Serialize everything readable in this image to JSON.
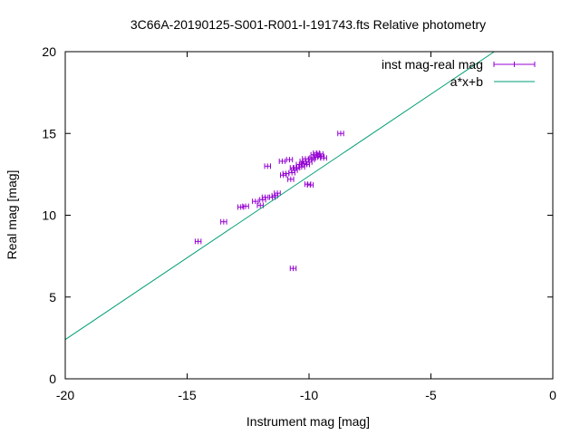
{
  "chart_data": {
    "type": "scatter",
    "title": "3C66A-20190125-S001-R001-I-191743.fts Relative photometry",
    "xlabel": "Instrument mag [mag]",
    "ylabel": "Real mag [mag]",
    "xlim": [
      -20,
      0
    ],
    "ylim": [
      0,
      20
    ],
    "x_ticks": [
      {
        "value": -20,
        "label": "-20"
      },
      {
        "value": -15,
        "label": "-15"
      },
      {
        "value": -10,
        "label": "-10"
      },
      {
        "value": -5,
        "label": "-5"
      },
      {
        "value": 0,
        "label": "0"
      }
    ],
    "y_ticks": [
      {
        "value": 0,
        "label": "0"
      },
      {
        "value": 5,
        "label": "5"
      },
      {
        "value": 10,
        "label": "10"
      },
      {
        "value": 15,
        "label": "15"
      },
      {
        "value": 20,
        "label": "20"
      }
    ],
    "grid": false,
    "legend_position": "top-right",
    "series": [
      {
        "name": "inst mag-real mag",
        "style": "points-with-xerrorbars",
        "color": "#9400d3",
        "x_error": 0.12,
        "points": [
          {
            "x": -14.55,
            "y": 8.4
          },
          {
            "x": -13.5,
            "y": 9.6
          },
          {
            "x": -12.8,
            "y": 10.5
          },
          {
            "x": -12.6,
            "y": 10.55
          },
          {
            "x": -12.2,
            "y": 10.85
          },
          {
            "x": -12.0,
            "y": 10.6
          },
          {
            "x": -11.9,
            "y": 10.95
          },
          {
            "x": -11.8,
            "y": 11.1
          },
          {
            "x": -11.7,
            "y": 13.0
          },
          {
            "x": -11.5,
            "y": 11.1
          },
          {
            "x": -11.4,
            "y": 11.2
          },
          {
            "x": -11.3,
            "y": 11.35
          },
          {
            "x": -11.1,
            "y": 13.3
          },
          {
            "x": -11.05,
            "y": 12.45
          },
          {
            "x": -10.95,
            "y": 12.55
          },
          {
            "x": -10.8,
            "y": 13.4
          },
          {
            "x": -10.75,
            "y": 12.2
          },
          {
            "x": -10.7,
            "y": 12.6
          },
          {
            "x": -10.65,
            "y": 12.9
          },
          {
            "x": -10.6,
            "y": 12.75
          },
          {
            "x": -10.5,
            "y": 12.9
          },
          {
            "x": -10.4,
            "y": 13.1
          },
          {
            "x": -10.3,
            "y": 12.95
          },
          {
            "x": -10.25,
            "y": 13.3
          },
          {
            "x": -10.2,
            "y": 13.15
          },
          {
            "x": -10.15,
            "y": 13.45
          },
          {
            "x": -10.1,
            "y": 13.1
          },
          {
            "x": -10.05,
            "y": 11.9
          },
          {
            "x": -10.0,
            "y": 13.25
          },
          {
            "x": -9.95,
            "y": 11.85
          },
          {
            "x": -9.9,
            "y": 13.4
          },
          {
            "x": -9.85,
            "y": 13.5
          },
          {
            "x": -9.8,
            "y": 13.7
          },
          {
            "x": -9.7,
            "y": 13.8
          },
          {
            "x": -9.65,
            "y": 13.55
          },
          {
            "x": -9.55,
            "y": 13.75
          },
          {
            "x": -9.5,
            "y": 13.6
          },
          {
            "x": -9.4,
            "y": 13.5
          },
          {
            "x": -10.65,
            "y": 6.75
          },
          {
            "x": -8.7,
            "y": 15.0
          }
        ]
      },
      {
        "name": "a*x+b",
        "style": "line",
        "color": "#009e73",
        "slope": 1.0,
        "intercept": 22.4
      }
    ]
  }
}
